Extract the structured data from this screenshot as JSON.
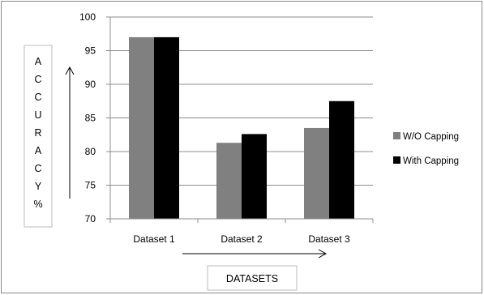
{
  "chart_data": {
    "type": "bar",
    "categories": [
      "Dataset  1",
      "Dataset 2",
      "Dataset 3"
    ],
    "series": [
      {
        "name": "W/O Capping",
        "color": "#808080",
        "values": [
          97.0,
          81.3,
          83.5
        ]
      },
      {
        "name": "With Capping",
        "color": "#000000",
        "values": [
          97.0,
          82.6,
          87.5
        ]
      }
    ],
    "ylim": [
      70,
      100
    ],
    "yticks": [
      70,
      75,
      80,
      85,
      90,
      95,
      100
    ],
    "ylabel": "A C C U R A C Y %",
    "ylabel_letters": [
      "A",
      "C",
      "C",
      "U",
      "R",
      "A",
      "C",
      "Y",
      "%"
    ],
    "xlabel": "DATASETS",
    "grid": true,
    "legend_position": "right"
  }
}
